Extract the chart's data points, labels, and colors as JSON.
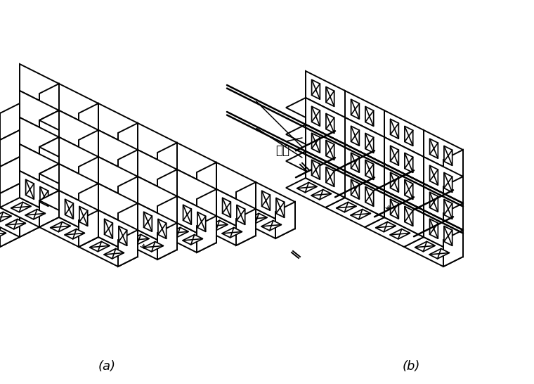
{
  "label_a": "(a)",
  "label_b": "(b)",
  "label_gangjin": "钉筋",
  "bg_color": "#ffffff",
  "line_color": "#000000",
  "fig_width": 7.6,
  "fig_height": 5.46,
  "dpi": 100,
  "lw": 1.4
}
